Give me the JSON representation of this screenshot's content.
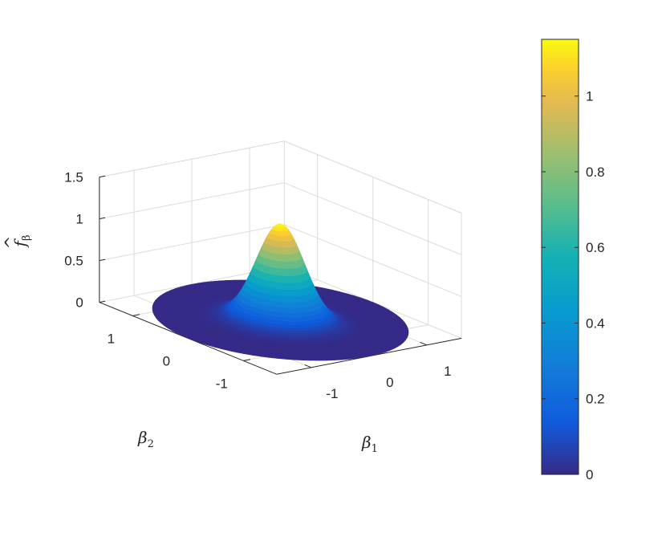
{
  "chart_data": {
    "type": "surface",
    "title": "",
    "colormap": "parula",
    "colors": {
      "low": "#352a87",
      "high": "#f9fb0e",
      "grid": "#dcdcdc",
      "axis": "#262626"
    },
    "xlabel": "β",
    "xlabel_sub": "1",
    "ylabel": "β",
    "ylabel_sub": "2",
    "zlabel": "f",
    "zlabel_sub": "β",
    "xlim": [
      -1.6,
      1.6
    ],
    "ylim": [
      -1.6,
      1.6
    ],
    "zlim": [
      0,
      1.5
    ],
    "xticks": [
      -1,
      0,
      1
    ],
    "xtick_labels": [
      "-1",
      "0",
      "1"
    ],
    "yticks": [
      -1,
      0,
      1
    ],
    "ytick_labels": [
      "-1",
      "0",
      "1"
    ],
    "zticks": [
      0,
      0.5,
      1,
      1.5
    ],
    "ztick_labels": [
      "0",
      "0.5",
      "1",
      "1.5"
    ],
    "surface": {
      "shape": "radially symmetric peak on a circular disk",
      "disk_radius": 1.6,
      "peak_value": 1.15,
      "peak_halfwidth": 0.55,
      "center": [
        0,
        0
      ]
    },
    "colorbar": {
      "ticks": [
        0,
        0.2,
        0.4,
        0.6,
        0.8,
        1
      ],
      "tick_labels": [
        "0",
        "0.2",
        "0.4",
        "0.6",
        "0.8",
        "1"
      ],
      "range": [
        0,
        1.15
      ],
      "position": "right"
    },
    "grid": true
  }
}
